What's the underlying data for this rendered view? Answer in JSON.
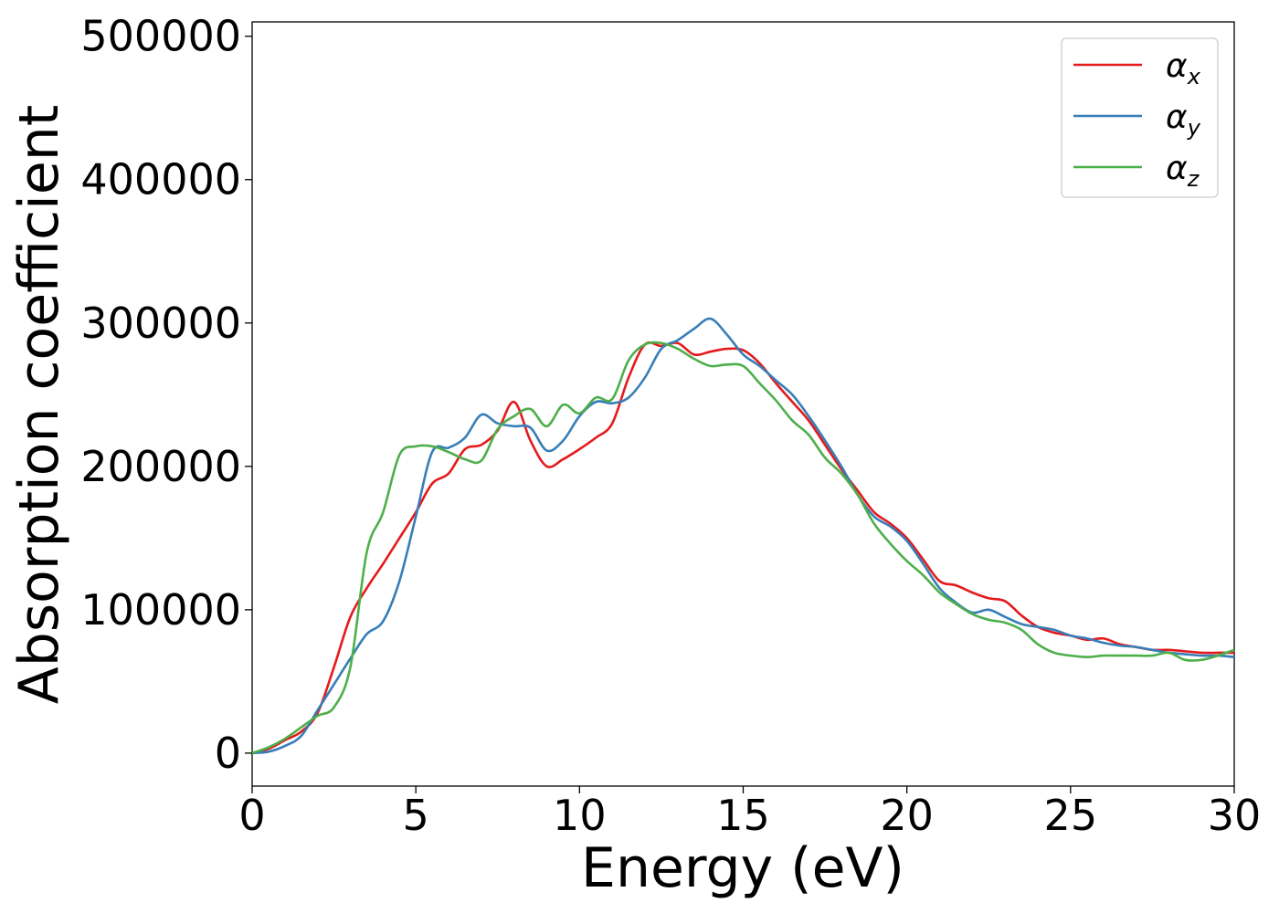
{
  "chart_data": {
    "type": "line",
    "xlabel": "Energy (eV)",
    "ylabel": "Absorption coefficient",
    "xlim": [
      0,
      30
    ],
    "ylim": [
      -23000,
      510000
    ],
    "xticks": [
      "0",
      "5",
      "10",
      "15",
      "20",
      "25",
      "30"
    ],
    "yticks": [
      "0",
      "100000",
      "200000",
      "300000",
      "400000",
      "500000"
    ],
    "grid": false,
    "legend_position": "top-right",
    "series": [
      {
        "name": "α",
        "name_subscript": "x",
        "color": "#e41a1c",
        "x": [
          0,
          0.5,
          1,
          1.5,
          2,
          2.5,
          3,
          3.5,
          4,
          4.5,
          5,
          5.5,
          6,
          6.5,
          7,
          7.5,
          8,
          8.5,
          9,
          9.5,
          10,
          10.5,
          11,
          11.5,
          12,
          12.5,
          13,
          13.5,
          14,
          14.5,
          15,
          15.5,
          16,
          16.5,
          17,
          17.5,
          18,
          18.5,
          19,
          19.5,
          20,
          20.5,
          21,
          21.5,
          22,
          22.5,
          23,
          23.5,
          24,
          24.5,
          25,
          25.5,
          26,
          26.5,
          27,
          27.5,
          28,
          28.5,
          29,
          29.5,
          30
        ],
        "y": [
          0,
          3000,
          9000,
          15000,
          28000,
          60000,
          95000,
          115000,
          132000,
          150000,
          168000,
          188000,
          195000,
          212000,
          215000,
          225000,
          245000,
          218000,
          200000,
          205000,
          212000,
          220000,
          230000,
          262000,
          285000,
          284000,
          286000,
          278000,
          280000,
          282000,
          281000,
          272000,
          258000,
          245000,
          232000,
          215000,
          198000,
          183000,
          168000,
          160000,
          150000,
          135000,
          120000,
          117000,
          112000,
          108000,
          106000,
          96000,
          88000,
          84000,
          82000,
          79000,
          80000,
          76000,
          74000,
          72000,
          72000,
          71000,
          70000,
          70000,
          70000
        ]
      },
      {
        "name": "α",
        "name_subscript": "y",
        "color": "#377eb8",
        "x": [
          0,
          0.5,
          1,
          1.5,
          2,
          2.5,
          3,
          3.5,
          4,
          4.5,
          5,
          5.5,
          6,
          6.5,
          7,
          7.5,
          8,
          8.5,
          9,
          9.5,
          10,
          10.5,
          11,
          11.5,
          12,
          12.5,
          13,
          13.5,
          14,
          14.5,
          15,
          15.5,
          16,
          16.5,
          17,
          17.5,
          18,
          18.5,
          19,
          19.5,
          20,
          20.5,
          21,
          21.5,
          22,
          22.5,
          23,
          23.5,
          24,
          24.5,
          25,
          25.5,
          26,
          26.5,
          27,
          27.5,
          28,
          28.5,
          29,
          29.5,
          30
        ],
        "y": [
          0,
          1000,
          5000,
          12000,
          30000,
          48000,
          66000,
          83000,
          92000,
          120000,
          165000,
          210000,
          213000,
          220000,
          236000,
          230000,
          228000,
          227000,
          211000,
          218000,
          235000,
          245000,
          244000,
          248000,
          262000,
          282000,
          288000,
          296000,
          303000,
          292000,
          278000,
          270000,
          260000,
          250000,
          235000,
          218000,
          200000,
          180000,
          165000,
          158000,
          148000,
          132000,
          115000,
          105000,
          98000,
          100000,
          95000,
          90000,
          88000,
          86000,
          82000,
          80000,
          77000,
          75000,
          74000,
          72000,
          70000,
          69000,
          68000,
          68000,
          67000
        ]
      },
      {
        "name": "α",
        "name_subscript": "z",
        "color": "#4daf4a",
        "x": [
          0,
          0.5,
          1,
          1.5,
          2,
          2.5,
          3,
          3.5,
          4,
          4.5,
          5,
          5.5,
          6,
          6.5,
          7,
          7.5,
          8,
          8.5,
          9,
          9.5,
          10,
          10.5,
          11,
          11.5,
          12,
          12.5,
          13,
          13.5,
          14,
          14.5,
          15,
          15.5,
          16,
          16.5,
          17,
          17.5,
          18,
          18.5,
          19,
          19.5,
          20,
          20.5,
          21,
          21.5,
          22,
          22.5,
          23,
          23.5,
          24,
          24.5,
          25,
          25.5,
          26,
          26.5,
          27,
          27.5,
          28,
          28.5,
          29,
          29.5,
          30
        ],
        "y": [
          0,
          4000,
          10000,
          18000,
          26000,
          32000,
          60000,
          140000,
          168000,
          208000,
          214000,
          214000,
          210000,
          205000,
          204000,
          226000,
          235000,
          240000,
          228000,
          243000,
          237000,
          248000,
          247000,
          274000,
          285000,
          286000,
          282000,
          275000,
          270000,
          271000,
          270000,
          258000,
          246000,
          232000,
          222000,
          206000,
          195000,
          180000,
          160000,
          146000,
          134000,
          124000,
          112000,
          104000,
          97000,
          93000,
          91000,
          86000,
          76000,
          70000,
          68000,
          67000,
          68000,
          68000,
          68000,
          68000,
          70000,
          65000,
          65000,
          68000,
          72000
        ]
      }
    ]
  }
}
